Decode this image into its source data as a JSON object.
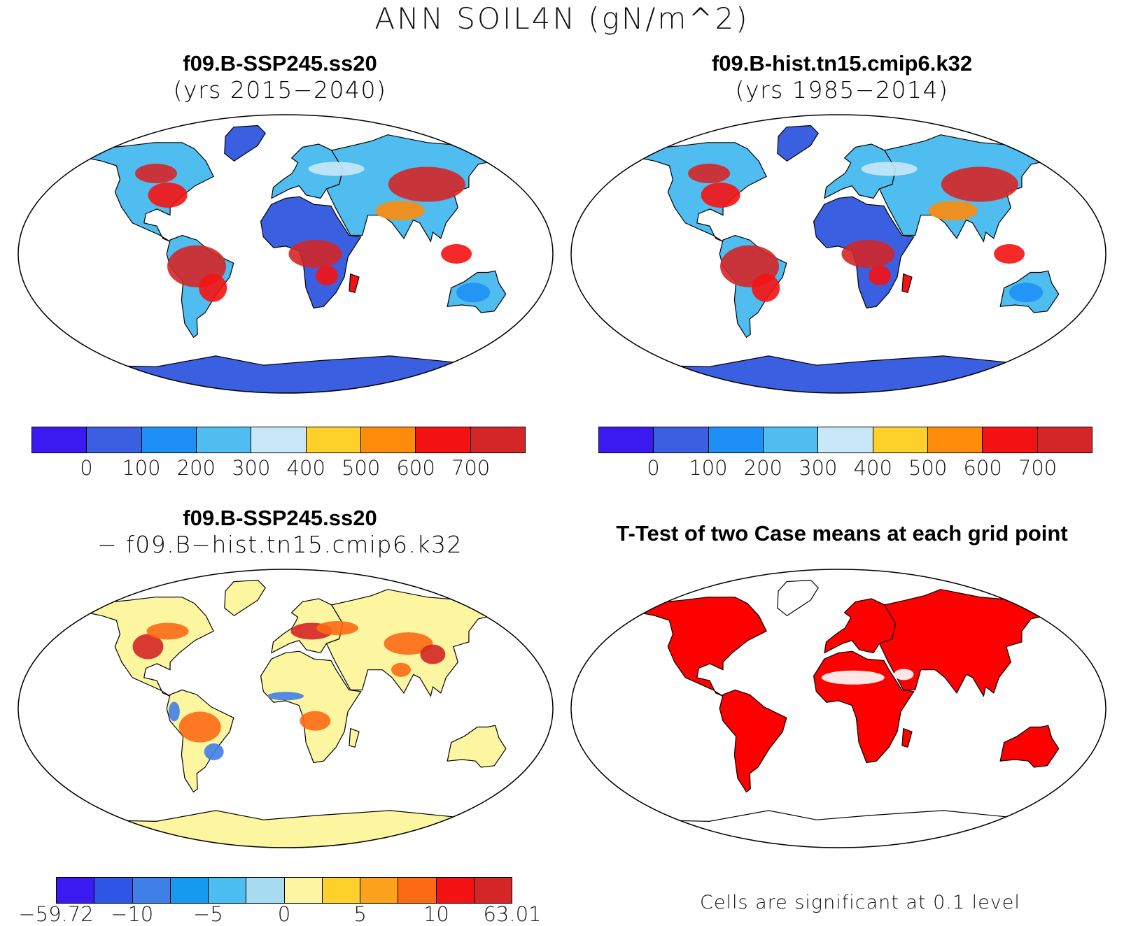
{
  "title": "ANN SOIL4N (gN/m^2)",
  "panels": [
    {
      "id": "case",
      "title_line1": "f09.B-SSP245.ss20",
      "title_line2": "(yrs 2015−2040)"
    },
    {
      "id": "control",
      "title_line1": "f09.B-hist.tn15.cmip6.k32",
      "title_line2": "(yrs 1985−2014)"
    },
    {
      "id": "difference",
      "title_line1": "f09.B-SSP245.ss20",
      "title_line2": "− f09.B−hist.tn15.cmip6.k32"
    },
    {
      "id": "ttest",
      "title_line1": "T-Test of two Case means at each grid point"
    }
  ],
  "colorbars": {
    "abs": {
      "colors": [
        "#3a1af0",
        "#3a5fe0",
        "#1e90f5",
        "#4fbdf0",
        "#c8e8f8",
        "#fdd02a",
        "#fd8c0a",
        "#f51212",
        "#d42626"
      ],
      "labels": [
        "0",
        "100",
        "200",
        "300",
        "400",
        "500",
        "600",
        "700"
      ]
    },
    "diff": {
      "colors": [
        "#3a1af0",
        "#2e55e6",
        "#3f80e8",
        "#159af0",
        "#4cbdf0",
        "#a8dcf0",
        "#fcf6a0",
        "#fdd02a",
        "#fca21c",
        "#fd6a14",
        "#f51212",
        "#d42626"
      ],
      "labels": [
        "−59.72",
        "−10",
        "−5",
        "0",
        "5",
        "10",
        "63.01"
      ]
    }
  },
  "significance_note": "Cells are significant at 0.1 level",
  "map_colors": {
    "desert": "#3a5fe0",
    "mid": "#4fbdf0",
    "high": "#f51212",
    "veryhigh": "#d42626",
    "warm": "#fd8c0a",
    "diff_base": "#fcf6a0",
    "diff_pos": "#fd6a14",
    "diff_neg": "#3f80e8",
    "significant": "#ff0000"
  }
}
